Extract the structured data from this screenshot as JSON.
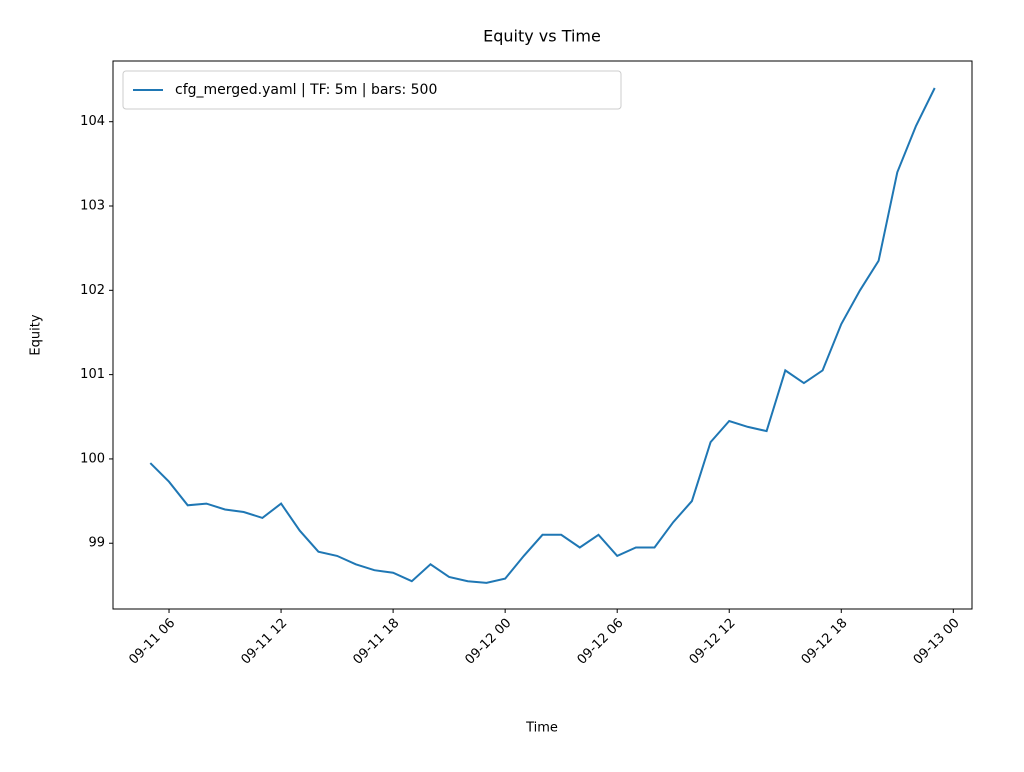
{
  "chart_data": {
    "type": "line",
    "title": "Equity vs Time",
    "xlabel": "Time",
    "ylabel": "Equity",
    "x": [
      "09-11 05",
      "09-11 06",
      "09-11 07",
      "09-11 08",
      "09-11 09",
      "09-11 10",
      "09-11 11",
      "09-11 12",
      "09-11 13",
      "09-11 14",
      "09-11 15",
      "09-11 16",
      "09-11 17",
      "09-11 18",
      "09-11 19",
      "09-11 20",
      "09-11 21",
      "09-11 22",
      "09-11 23",
      "09-12 00",
      "09-12 01",
      "09-12 02",
      "09-12 03",
      "09-12 04",
      "09-12 05",
      "09-12 06",
      "09-12 07",
      "09-12 08",
      "09-12 09",
      "09-12 10",
      "09-12 11",
      "09-12 12",
      "09-12 13",
      "09-12 14",
      "09-12 15",
      "09-12 16",
      "09-12 17",
      "09-12 18",
      "09-12 19",
      "09-12 20",
      "09-12 21",
      "09-12 22",
      "09-12 23"
    ],
    "series": [
      {
        "name": "cfg_merged.yaml | TF: 5m | bars: 500",
        "color": "#1f77b4",
        "values": [
          99.95,
          99.73,
          99.45,
          99.47,
          99.4,
          99.37,
          99.3,
          99.47,
          99.15,
          98.9,
          98.85,
          98.75,
          98.68,
          98.65,
          98.55,
          98.75,
          98.6,
          98.55,
          98.53,
          98.58,
          98.85,
          99.1,
          99.1,
          98.95,
          99.1,
          98.85,
          98.95,
          98.95,
          99.25,
          99.5,
          100.2,
          100.45,
          100.38,
          100.33,
          101.05,
          100.9,
          101.05,
          101.6,
          102.0,
          102.35,
          103.4,
          103.95,
          104.4
        ]
      }
    ],
    "xlim": [
      "09-11 03",
      "09-13 01"
    ],
    "xticks": [
      "09-11 06",
      "09-11 12",
      "09-11 18",
      "09-12 00",
      "09-12 06",
      "09-12 12",
      "09-12 18",
      "09-13 00"
    ],
    "ylim": [
      98.22,
      104.72
    ],
    "yticks": [
      99,
      100,
      101,
      102,
      103,
      104
    ],
    "legend": "upper left",
    "grid": false
  }
}
